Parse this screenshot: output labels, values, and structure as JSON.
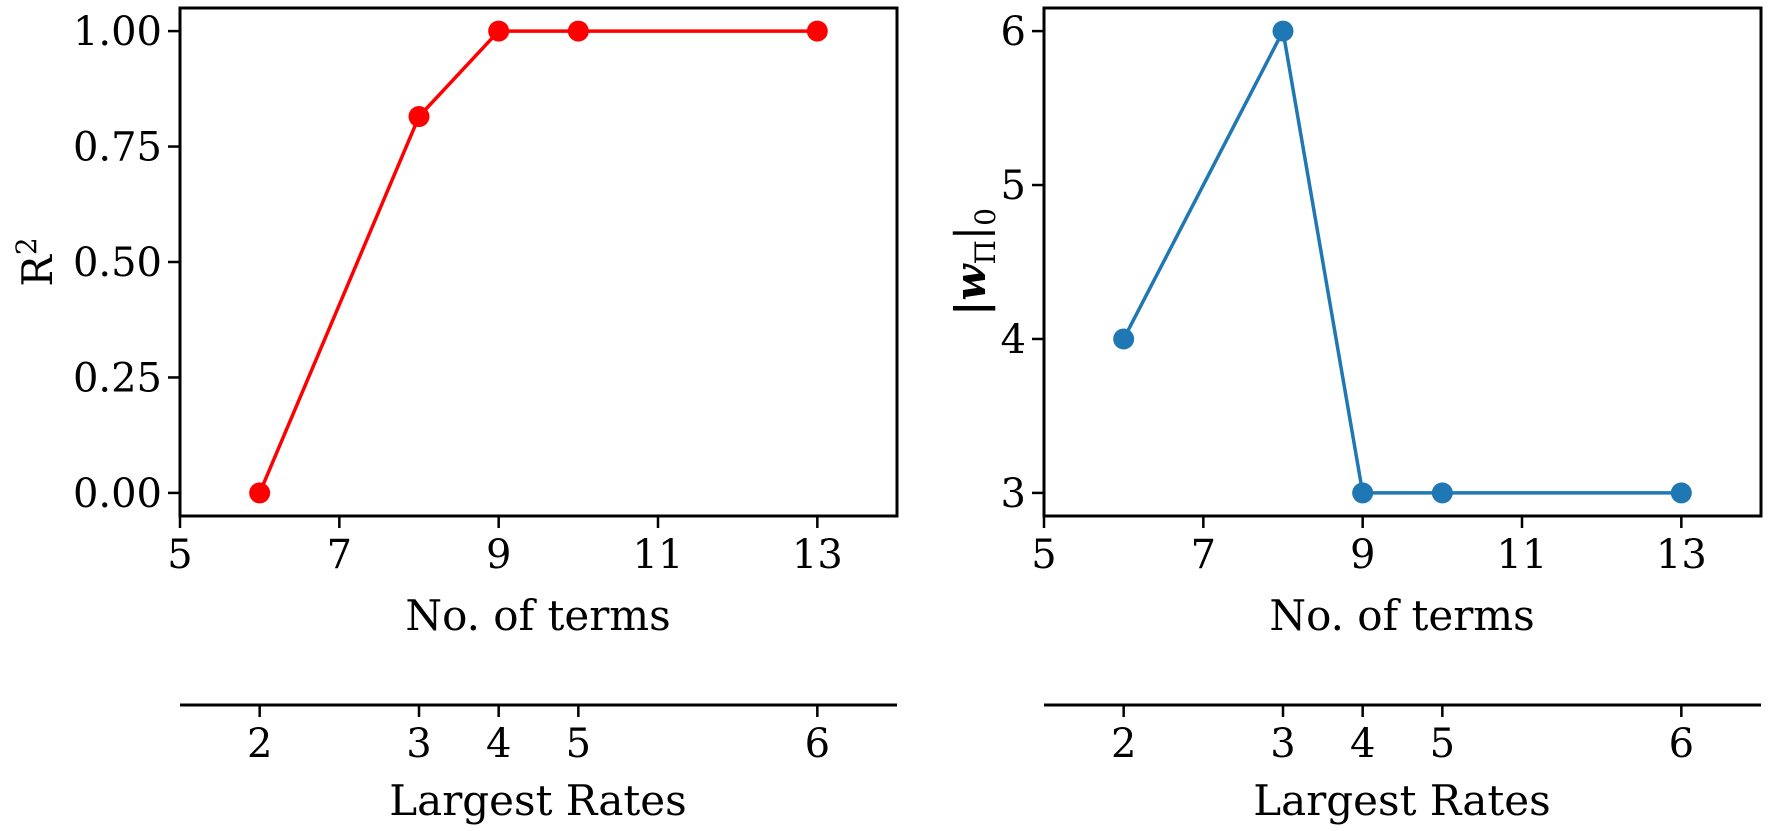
{
  "chart_data": [
    {
      "type": "line",
      "color": "#ff0000",
      "x": [
        6,
        8,
        9,
        10,
        13
      ],
      "series": [
        {
          "values": [
            0.0,
            0.815,
            1.0,
            1.0,
            1.0
          ]
        }
      ],
      "xlabel": "No. of terms",
      "ylabel": "R",
      "ylabel_superscript": "2",
      "xlim": [
        5,
        14
      ],
      "ylim": [
        -0.05,
        1.05
      ],
      "xticks": [
        5,
        7,
        9,
        11,
        13
      ],
      "xtick_labels": [
        "5",
        "7",
        "9",
        "11",
        "13"
      ],
      "yticks": [
        0.0,
        0.25,
        0.5,
        0.75,
        1.0
      ],
      "ytick_labels": [
        "0.00",
        "0.25",
        "0.50",
        "0.75",
        "1.00"
      ],
      "secondary_xaxis": {
        "label": "Largest Rates",
        "positions": [
          6,
          8,
          9,
          10,
          13
        ],
        "tick_labels": [
          "2",
          "3",
          "4",
          "5",
          "6"
        ]
      },
      "grid": false
    },
    {
      "type": "line",
      "color": "#1f77b4",
      "x": [
        6,
        8,
        9,
        10,
        13
      ],
      "series": [
        {
          "values": [
            4,
            6,
            3,
            3,
            3
          ]
        }
      ],
      "xlabel": "No. of terms",
      "ylabel": "|w",
      "ylabel_subscript": "Π",
      "ylabel_suffix": "|",
      "ylabel_suffix_subscript": "0",
      "xlim": [
        5,
        14
      ],
      "ylim": [
        2.85,
        6.15
      ],
      "xticks": [
        5,
        7,
        9,
        11,
        13
      ],
      "xtick_labels": [
        "5",
        "7",
        "9",
        "11",
        "13"
      ],
      "yticks": [
        3,
        4,
        5,
        6
      ],
      "ytick_labels": [
        "3",
        "4",
        "5",
        "6"
      ],
      "secondary_xaxis": {
        "label": "Largest Rates",
        "positions": [
          6,
          8,
          9,
          10,
          13
        ],
        "tick_labels": [
          "2",
          "3",
          "4",
          "5",
          "6"
        ]
      },
      "grid": false
    }
  ]
}
